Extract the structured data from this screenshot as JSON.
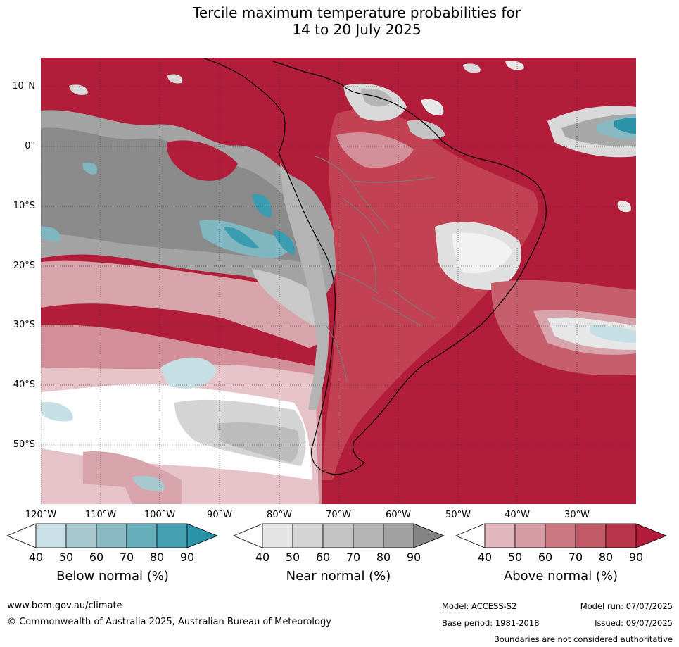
{
  "title_line1": "Tercile maximum temperature probabilities for",
  "title_line2": "14 to 20 July 2025",
  "lat_labels": [
    "10°N",
    "0°",
    "10°S",
    "20°S",
    "30°S",
    "40°S",
    "50°S"
  ],
  "lon_labels": [
    "120°W",
    "110°W",
    "100°W",
    "90°W",
    "80°W",
    "70°W",
    "60°W",
    "50°W",
    "40°W",
    "30°W"
  ],
  "colorbars": {
    "below": {
      "title": "Below normal (%)",
      "ticks": [
        "40",
        "50",
        "60",
        "70",
        "80",
        "90"
      ],
      "colors": [
        "#ffffff",
        "#c8e0e6",
        "#a7c8cf",
        "#88b9c2",
        "#67aebb",
        "#45a1b2",
        "#2a93a7"
      ]
    },
    "near": {
      "title": "Near normal (%)",
      "ticks": [
        "40",
        "50",
        "60",
        "70",
        "80",
        "90"
      ],
      "colors": [
        "#ffffff",
        "#e4e4e4",
        "#d4d4d4",
        "#c4c4c4",
        "#b4b4b4",
        "#a2a2a2",
        "#848484"
      ]
    },
    "above": {
      "title": "Above normal (%)",
      "ticks": [
        "40",
        "50",
        "60",
        "70",
        "80",
        "90"
      ],
      "colors": [
        "#ffffff",
        "#e1b7bd",
        "#d69aa2",
        "#cb7780",
        "#c05a67",
        "#b8354a",
        "#b01c3a"
      ]
    }
  },
  "footer": {
    "url": "www.bom.gov.au/climate",
    "copyright": "© Commonwealth of Australia 2025, Australian Bureau of Meteorology",
    "model": "Model: ACCESS-S2",
    "model_run": "Model run: 07/07/2025",
    "base_period": "Base period: 1981-2018",
    "issued": "Issued: 09/07/2025",
    "disclaimer": "Boundaries are not considered authoritative"
  }
}
